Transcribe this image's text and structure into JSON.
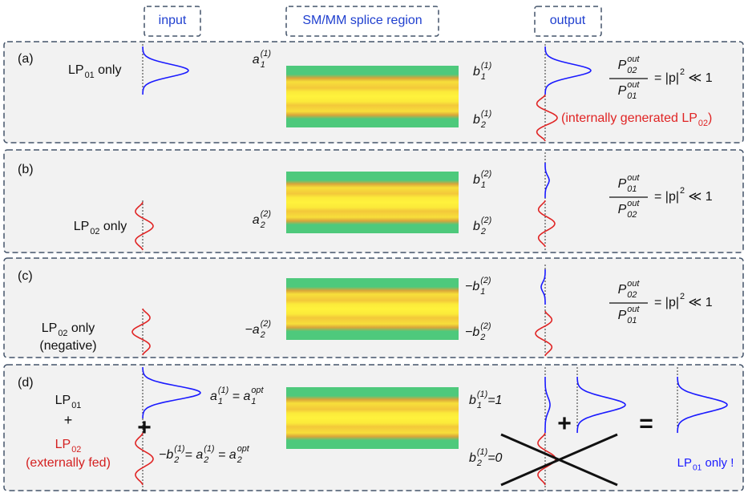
{
  "header": {
    "input": "input",
    "splice": "SM/MM splice region",
    "output": "output"
  },
  "panels": [
    {
      "tag": "(a)",
      "input_label": [
        {
          "atoms": [
            {
              "t": "LP",
              "sub": "01"
            },
            {
              "t": " only"
            }
          ]
        }
      ],
      "a_label": [
        {
          "t": "a",
          "sub": "1",
          "sup": "(1)"
        }
      ],
      "b1_label": [
        {
          "t": "b",
          "sub": "1",
          "sup": "(1)"
        }
      ],
      "b2_label": [
        {
          "t": "b",
          "sub": "2",
          "sup": "(1)"
        }
      ],
      "equation": {
        "num": [
          {
            "t": "P",
            "sub": "02",
            "sup": "out"
          }
        ],
        "den": [
          {
            "t": "P",
            "sub": "01",
            "sup": "out"
          }
        ],
        "rhs": [
          {
            "t": "= |p|",
            "sup": "2"
          },
          {
            "t": " ≪ 1"
          }
        ]
      },
      "note": [
        {
          "t": "(internally generated LP",
          "sub": "02"
        },
        {
          "t": ")"
        }
      ]
    },
    {
      "tag": "(b)",
      "input_label": [
        {
          "atoms": [
            {
              "t": "LP",
              "sub": "02"
            },
            {
              "t": " only"
            }
          ]
        }
      ],
      "a_label": [
        {
          "t": "a",
          "sub": "2",
          "sup": "(2)"
        }
      ],
      "b1_label": [
        {
          "t": "b",
          "sub": "1",
          "sup": "(2)"
        }
      ],
      "b2_label": [
        {
          "t": "b",
          "sub": "2",
          "sup": "(2)"
        }
      ],
      "equation": {
        "num": [
          {
            "t": "P",
            "sub": "01",
            "sup": "out"
          }
        ],
        "den": [
          {
            "t": "P",
            "sub": "02",
            "sup": "out"
          }
        ],
        "rhs": [
          {
            "t": "= |p|",
            "sup": "2"
          },
          {
            "t": " ≪ 1"
          }
        ]
      }
    },
    {
      "tag": "(c)",
      "input_label": [
        {
          "atoms": [
            {
              "t": "LP",
              "sub": "02"
            },
            {
              "t": " only"
            }
          ]
        },
        {
          "atoms": [
            {
              "t": "(negative)"
            }
          ]
        }
      ],
      "a_label": [
        {
          "t": "−a",
          "sub": "2",
          "sup": "(2)"
        }
      ],
      "b1_label": [
        {
          "t": "−b",
          "sub": "1",
          "sup": "(2)"
        }
      ],
      "b2_label": [
        {
          "t": "−b",
          "sub": "2",
          "sup": "(2)"
        }
      ],
      "equation": {
        "num": [
          {
            "t": "P",
            "sub": "02",
            "sup": "out"
          }
        ],
        "den": [
          {
            "t": "P",
            "sub": "01",
            "sup": "out"
          }
        ],
        "rhs": [
          {
            "t": "= |p|",
            "sup": "2"
          },
          {
            "t": " ≪ 1"
          }
        ]
      }
    },
    {
      "tag": "(d)",
      "input_label": [
        {
          "atoms": [
            {
              "t": "LP",
              "sub": "01"
            }
          ]
        },
        {
          "atoms": [
            {
              "t": "+"
            }
          ]
        },
        {
          "atoms": [
            {
              "t": "LP",
              "sub": "02"
            }
          ],
          "color": "#d42020"
        },
        {
          "atoms": [
            {
              "t": "(externally fed)"
            }
          ],
          "color": "#d42020"
        }
      ],
      "a_label": [
        {
          "t": "a",
          "sub": "1",
          "sup": "(1)"
        },
        {
          "t": " = "
        },
        {
          "t": "a",
          "sub": "1",
          "sup": "opt"
        }
      ],
      "a2_label": [
        {
          "t": "−b",
          "sub": "2",
          "sup": "(1)"
        },
        {
          "t": "= "
        },
        {
          "t": "a",
          "sub": "2",
          "sup": "(1)"
        },
        {
          "t": " = "
        },
        {
          "t": "a",
          "sub": "2",
          "sup": "opt"
        }
      ],
      "b1_label": [
        {
          "t": "b",
          "sub": "1",
          "sup": "(1)"
        },
        {
          "t": "=1"
        }
      ],
      "b2_label": [
        {
          "t": "b",
          "sub": "2",
          "sup": "(1)"
        },
        {
          "t": "=0"
        }
      ],
      "plus": "+",
      "plus2": "+",
      "equals": "=",
      "result": [
        {
          "t": "LP",
          "sub": "01"
        },
        {
          "t": " only !"
        }
      ]
    }
  ]
}
